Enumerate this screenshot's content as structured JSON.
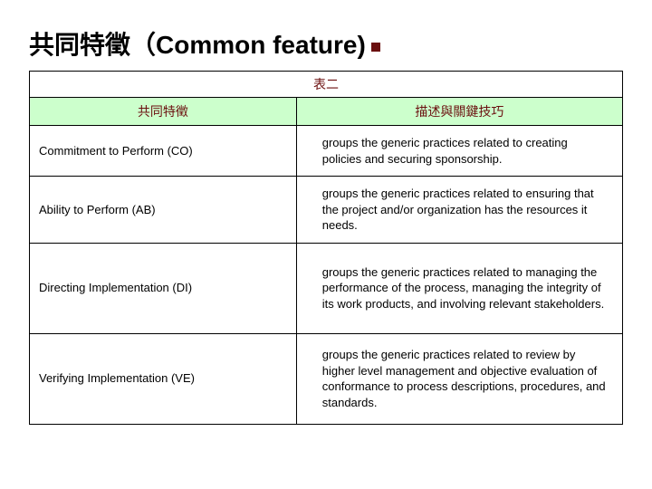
{
  "title": "共同特徵（Common feature)",
  "table": {
    "caption": "表二",
    "columns": [
      "共同特徵",
      "描述與關鍵技巧"
    ],
    "col_widths": [
      "45%",
      "55%"
    ],
    "caption_color": "#6b0f0f",
    "header_bg": "#ccffcc",
    "header_text_color": "#6b0f0f",
    "border_color": "#000000",
    "body_text_color": "#000000",
    "caption_fontsize": 14,
    "header_fontsize": 14,
    "body_fontsize": 13,
    "rows": [
      {
        "feature": "Commitment to Perform (CO)",
        "desc": "groups the generic practices related to creating policies and securing sponsorship."
      },
      {
        "feature": "Ability to Perform (AB)",
        "desc": "groups the generic practices related to ensuring that the project and/or organization has the resources it needs."
      },
      {
        "feature": "Directing Implementation (DI)",
        "desc": "groups the generic practices related to managing the performance of the process, managing the integrity of its work products, and involving relevant stakeholders."
      },
      {
        "feature": "Verifying Implementation (VE)",
        "desc": "groups the generic practices related to review by higher level management and objective evaluation of conformance to process descriptions, procedures, and standards."
      }
    ]
  },
  "title_color": "#000000",
  "title_fontsize": 28,
  "bullet_color": "#6b0f0f",
  "background_color": "#ffffff"
}
